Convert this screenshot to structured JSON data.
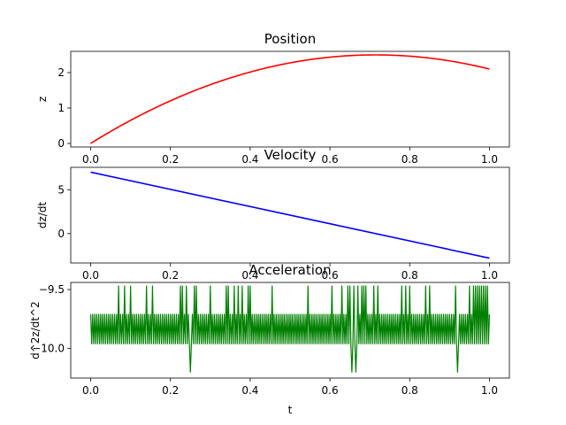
{
  "chart_data": [
    {
      "type": "line",
      "title": "Position",
      "xlabel": "",
      "ylabel": "z",
      "xlim": [
        -0.05,
        1.05
      ],
      "ylim": [
        -0.1,
        2.6
      ],
      "xticks": [
        0.0,
        0.2,
        0.4,
        0.6,
        0.8,
        1.0
      ],
      "xtick_labels": [
        "0.0",
        "0.2",
        "0.4",
        "0.6",
        "0.8",
        "1.0"
      ],
      "yticks": [
        0,
        1,
        2
      ],
      "ytick_labels": [
        "0",
        "1",
        "2"
      ],
      "grid": false,
      "series": [
        {
          "color": "#ff0000",
          "x": [
            0.0,
            0.1,
            0.2,
            0.3,
            0.4,
            0.5,
            0.6,
            0.7,
            0.8,
            0.9,
            1.0
          ],
          "y": [
            0.0,
            0.65,
            1.2,
            1.66,
            2.02,
            2.28,
            2.44,
            2.5,
            2.47,
            2.34,
            2.1
          ]
        }
      ]
    },
    {
      "type": "line",
      "title": "Velocity",
      "xlabel": "",
      "ylabel": "dz/dt",
      "xlim": [
        -0.05,
        1.05
      ],
      "ylim": [
        -3.35,
        7.55
      ],
      "xticks": [
        0.0,
        0.2,
        0.4,
        0.6,
        0.8,
        1.0
      ],
      "xtick_labels": [
        "0.0",
        "0.2",
        "0.4",
        "0.6",
        "0.8",
        "1.0"
      ],
      "yticks": [
        0,
        5
      ],
      "ytick_labels": [
        "0",
        "5"
      ],
      "grid": false,
      "series": [
        {
          "color": "#0000ff",
          "x": [
            0.0,
            1.0
          ],
          "y": [
            7.0,
            -2.8
          ]
        }
      ]
    },
    {
      "type": "line",
      "title": "Acceleration",
      "xlabel": "t",
      "ylabel": "d^2z/dt^2",
      "xlim": [
        -0.05,
        1.05
      ],
      "ylim": [
        -10.25,
        -9.44
      ],
      "xticks": [
        0.0,
        0.2,
        0.4,
        0.6,
        0.8,
        1.0
      ],
      "xtick_labels": [
        "0.0",
        "0.2",
        "0.4",
        "0.6",
        "0.8",
        "1.0"
      ],
      "yticks": [
        -9.5,
        -10.0
      ],
      "ytick_labels": [
        "−9.5",
        "−10.0"
      ],
      "grid": false,
      "series": [
        {
          "color": "#008000",
          "x_range": [
            0.0,
            1.0
          ],
          "oscillation_levels": [
            -9.71,
            -9.96
          ],
          "spike_high": -9.47,
          "spike_low": -10.2,
          "spikes_high_x": [
            0.07,
            0.085,
            0.1,
            0.14,
            0.155,
            0.225,
            0.23,
            0.24,
            0.26,
            0.265,
            0.3,
            0.34,
            0.345,
            0.36,
            0.37,
            0.38,
            0.395,
            0.4,
            0.455,
            0.545,
            0.605,
            0.63,
            0.645,
            0.65,
            0.66,
            0.67,
            0.68,
            0.685,
            0.69,
            0.71,
            0.72,
            0.78,
            0.79,
            0.8,
            0.84,
            0.85,
            0.915,
            0.95,
            0.96,
            0.965,
            0.97,
            0.975,
            0.98,
            0.985,
            0.99,
            0.995
          ],
          "spikes_low_x": [
            0.07,
            0.155,
            0.225,
            0.25,
            0.34,
            0.4,
            0.605,
            0.645,
            0.655,
            0.665,
            0.685,
            0.69,
            0.78,
            0.85,
            0.92,
            0.965,
            0.98,
            0.985
          ]
        }
      ]
    }
  ]
}
